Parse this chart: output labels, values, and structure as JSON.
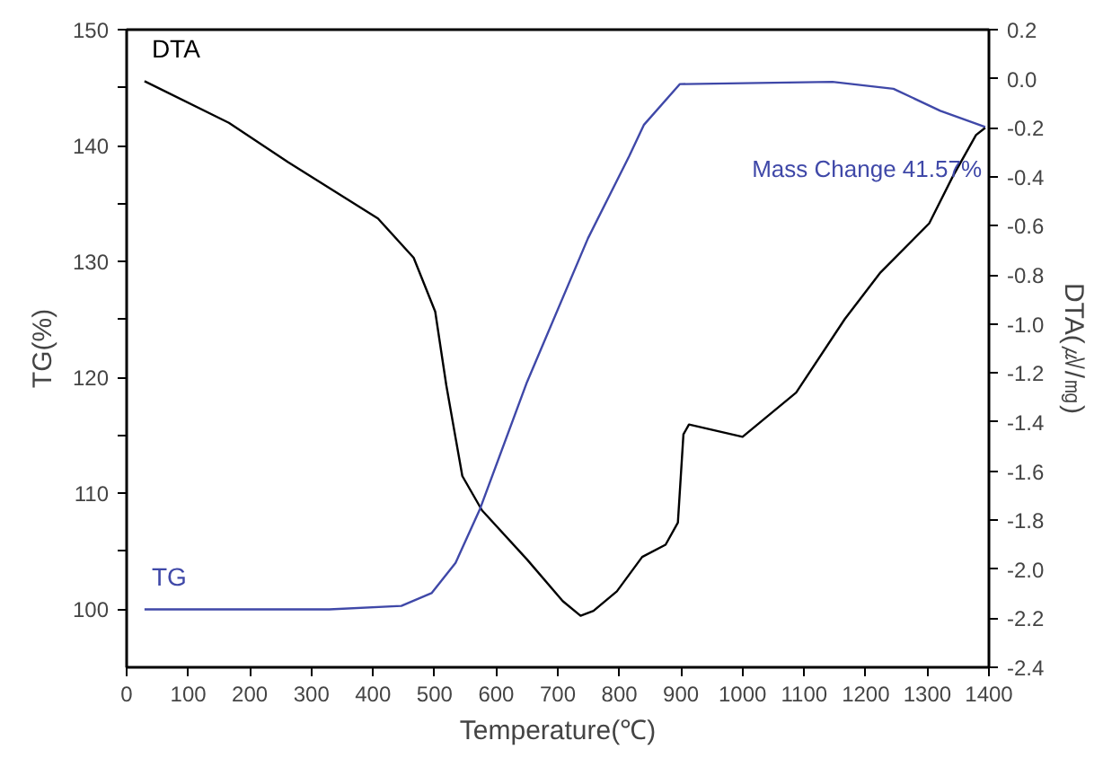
{
  "chart_data": {
    "type": "line",
    "xlabel": "Temperature(℃)",
    "ylabel": "TG(%)",
    "y2label": "DTA(㎶/㎎)",
    "xlim": [
      0,
      1400
    ],
    "xticks": [
      0,
      100,
      200,
      300,
      400,
      500,
      600,
      700,
      800,
      900,
      1000,
      1100,
      1200,
      1300,
      1400
    ],
    "ylim": [
      95,
      150
    ],
    "yticks": [
      100,
      {
        "value": 105,
        "label": null
      },
      110,
      {
        "value": 115,
        "label": null
      },
      120,
      {
        "value": 125,
        "label": null
      },
      130,
      {
        "value": 135,
        "label": null
      },
      140,
      {
        "value": 145,
        "label": null
      },
      150
    ],
    "y2lim": [
      -2.4,
      0.2
    ],
    "y2ticks": [
      {
        "value": -2.4,
        "label": "-2.4"
      },
      {
        "value": -2.2,
        "label": "-2.2"
      },
      {
        "value": -2.0,
        "label": "-2.0"
      },
      {
        "value": -1.8,
        "label": "-1.8"
      },
      {
        "value": -1.6,
        "label": "-1.6"
      },
      {
        "value": -1.4,
        "label": "-1.4"
      },
      {
        "value": -1.2,
        "label": "-1.2"
      },
      {
        "value": -1.0,
        "label": "-1.0"
      },
      {
        "value": -0.8,
        "label": "-0.8"
      },
      {
        "value": -0.6,
        "label": "-0.6"
      },
      {
        "value": -0.4,
        "label": "-0.4"
      },
      {
        "value": -0.2,
        "label": "-0.2"
      },
      {
        "value": 0,
        "label": "0.0"
      },
      {
        "value": 0.2,
        "label": "0.2"
      }
    ],
    "grid": false,
    "legend": false,
    "annotations": [
      "Mass Change 41.57%"
    ],
    "series": [
      {
        "name": "DTA",
        "color": "#000000",
        "axis": "y2",
        "x": [
          29,
          166,
          262,
          408,
          466,
          501,
          519,
          545,
          577,
          650,
          708,
          737,
          758,
          796,
          837,
          875,
          895,
          904,
          913,
          1000,
          1087,
          1166,
          1224,
          1303,
          1341,
          1379,
          1394
        ],
        "values": [
          -0.01,
          -0.18,
          -0.34,
          -0.57,
          -0.73,
          -0.95,
          -1.25,
          -1.62,
          -1.76,
          -1.96,
          -2.13,
          -2.19,
          -2.17,
          -2.09,
          -1.95,
          -1.9,
          -1.81,
          -1.45,
          -1.41,
          -1.46,
          -1.28,
          -0.98,
          -0.79,
          -0.59,
          -0.4,
          -0.23,
          -0.2
        ]
      },
      {
        "name": "TG",
        "color": "#3f48a8",
        "x": [
          29,
          329,
          446,
          495,
          534,
          574,
          650,
          749,
          816,
          840,
          898,
          1146,
          1245,
          1321,
          1394
        ],
        "values": [
          100,
          100,
          100.3,
          101.4,
          104,
          108.7,
          119.6,
          132,
          139.1,
          141.8,
          145.3,
          145.5,
          144.9,
          143,
          141.6
        ]
      }
    ]
  }
}
